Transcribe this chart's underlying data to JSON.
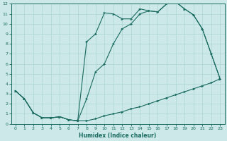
{
  "xlabel": "Humidex (Indice chaleur)",
  "bg_color": "#cce8e8",
  "line_color": "#1a6b60",
  "grid_color": "#aad4d4",
  "xlim": [
    -0.5,
    23.5
  ],
  "ylim": [
    0,
    12
  ],
  "xticks": [
    0,
    1,
    2,
    3,
    4,
    5,
    6,
    7,
    8,
    9,
    10,
    11,
    12,
    13,
    14,
    15,
    16,
    17,
    18,
    19,
    20,
    21,
    22,
    23
  ],
  "yticks": [
    0,
    1,
    2,
    3,
    4,
    5,
    6,
    7,
    8,
    9,
    10,
    11,
    12
  ],
  "line1_x": [
    0,
    1,
    2,
    3,
    4,
    5,
    6,
    7,
    8,
    9,
    10,
    11,
    12,
    13,
    14,
    15,
    16,
    17,
    18,
    19,
    20,
    21,
    22,
    23
  ],
  "line1_y": [
    3.3,
    2.5,
    1.1,
    0.6,
    0.6,
    0.7,
    0.4,
    0.3,
    8.2,
    9.0,
    11.1,
    11.0,
    10.5,
    10.5,
    11.5,
    11.3,
    11.2,
    12.0,
    12.2,
    11.5,
    10.9,
    9.5,
    7.0,
    4.5
  ],
  "line2_x": [
    0,
    1,
    2,
    3,
    4,
    5,
    6,
    7,
    8,
    9,
    10,
    11,
    12,
    13,
    14,
    15,
    16,
    17,
    18,
    19,
    20,
    21,
    22,
    23
  ],
  "line2_y": [
    3.3,
    2.5,
    1.1,
    0.6,
    0.6,
    0.7,
    0.4,
    0.3,
    2.5,
    5.2,
    6.0,
    8.0,
    9.5,
    10.0,
    11.0,
    11.3,
    11.2,
    12.0,
    12.2,
    11.5,
    10.9,
    9.5,
    7.0,
    4.5
  ],
  "line3_x": [
    0,
    1,
    2,
    3,
    4,
    5,
    6,
    7,
    8,
    9,
    10,
    11,
    12,
    13,
    14,
    15,
    16,
    17,
    18,
    19,
    20,
    21,
    22,
    23
  ],
  "line3_y": [
    3.3,
    2.5,
    1.1,
    0.6,
    0.6,
    0.7,
    0.4,
    0.3,
    0.3,
    0.5,
    0.8,
    1.0,
    1.2,
    1.5,
    1.7,
    2.0,
    2.3,
    2.6,
    2.9,
    3.2,
    3.5,
    3.8,
    4.1,
    4.5
  ]
}
